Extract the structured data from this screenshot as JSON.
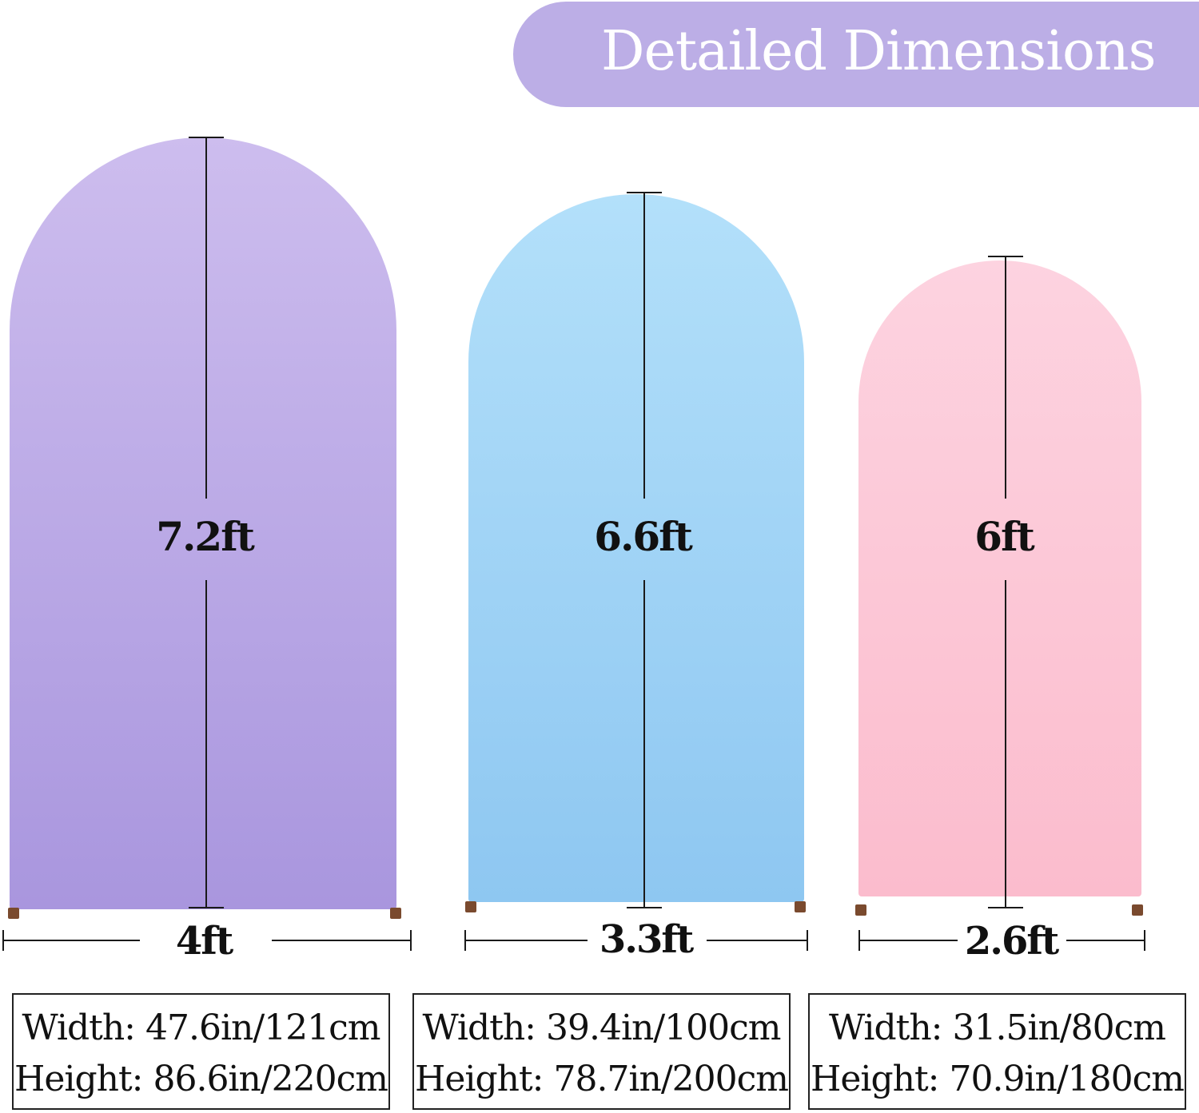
{
  "banner": {
    "title": "Detailed Dimensions",
    "color": "#bcaee6"
  },
  "arches": [
    {
      "color_top": "#cdbdee",
      "color_bottom": "#a996de",
      "height_label": "7.2ft",
      "width_label": "4ft",
      "spec": {
        "width": "Width: 47.6in/121cm",
        "height": "Height: 86.6in/220cm"
      }
    },
    {
      "color_top": "#b3e0fa",
      "color_bottom": "#8ec7f1",
      "height_label": "6.6ft",
      "width_label": "3.3ft",
      "spec": {
        "width": "Width: 39.4in/100cm",
        "height": "Height: 78.7in/200cm"
      }
    },
    {
      "color_top": "#fdd3e0",
      "color_bottom": "#fbbccd",
      "height_label": "6ft",
      "width_label": "2.6ft",
      "spec": {
        "width": "Width: 31.5in/80cm",
        "height": "Height: 70.9in/180cm"
      }
    }
  ]
}
